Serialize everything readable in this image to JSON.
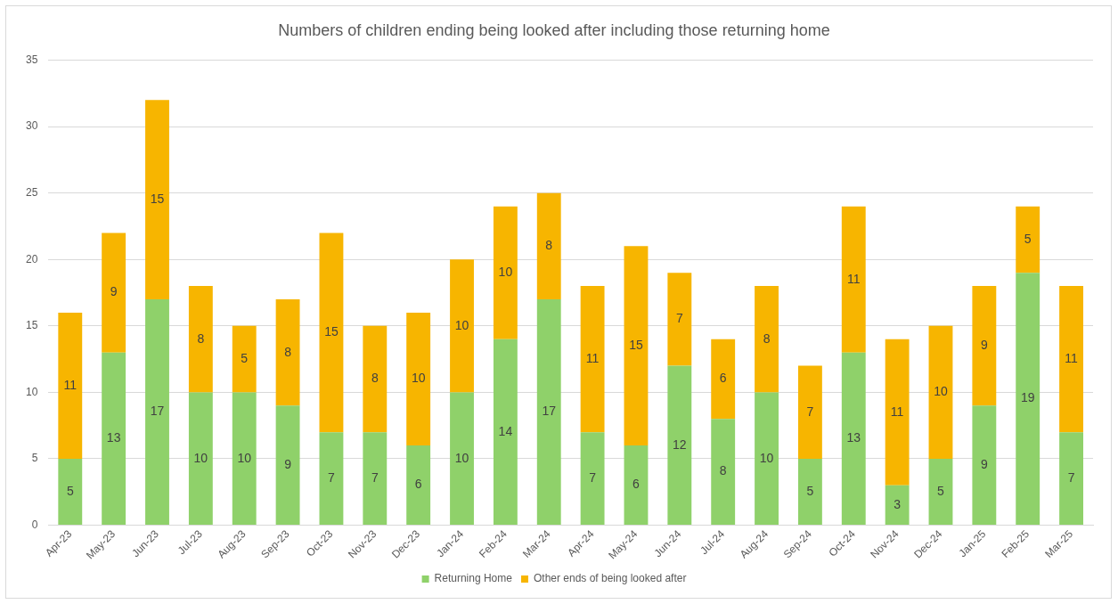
{
  "chart_data": {
    "type": "bar",
    "title": "Numbers of children ending being looked after including those returning home",
    "categories": [
      "Apr-23",
      "May-23",
      "Jun-23",
      "Jul-23",
      "Aug-23",
      "Sep-23",
      "Oct-23",
      "Nov-23",
      "Dec-23",
      "Jan-24",
      "Feb-24",
      "Mar-24",
      "Apr-24",
      "May-24",
      "Jun-24",
      "Jul-24",
      "Aug-24",
      "Sep-24",
      "Oct-24",
      "Nov-24",
      "Dec-24",
      "Jan-25",
      "Feb-25",
      "Mar-25"
    ],
    "series": [
      {
        "name": "Returning Home",
        "color": "#8fd16a",
        "values": [
          5,
          13,
          17,
          10,
          10,
          9,
          7,
          7,
          6,
          10,
          14,
          17,
          7,
          6,
          12,
          8,
          10,
          5,
          13,
          3,
          5,
          9,
          19,
          7
        ]
      },
      {
        "name": "Other ends of being looked after",
        "color": "#f7b500",
        "values": [
          11,
          9,
          15,
          8,
          5,
          8,
          15,
          8,
          10,
          10,
          10,
          8,
          11,
          15,
          7,
          6,
          8,
          7,
          11,
          11,
          10,
          9,
          5,
          11
        ]
      }
    ],
    "stacked": true,
    "ylim": [
      0,
      35
    ],
    "yticks": [
      0,
      5,
      10,
      15,
      20,
      25,
      30,
      35
    ],
    "grid": "y",
    "legend": "bottom",
    "data_labels": true
  }
}
